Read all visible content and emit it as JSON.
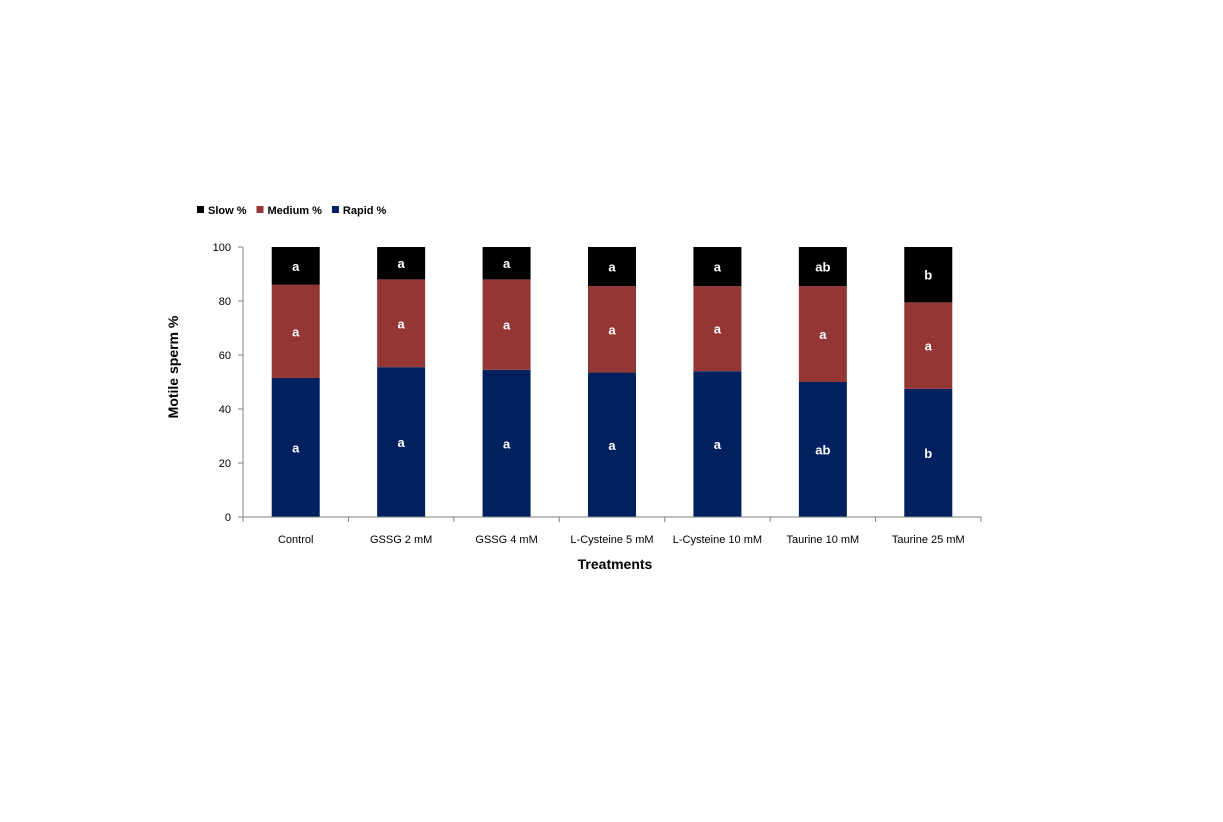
{
  "chart_data": {
    "type": "bar",
    "stacked": true,
    "title": "",
    "xlabel": "Treatments",
    "ylabel": "Motile sperm %",
    "ylim": [
      0,
      100
    ],
    "yticks": [
      0,
      20,
      40,
      60,
      80,
      100
    ],
    "grid": false,
    "legend_position": "top-left",
    "categories": [
      "Control",
      "GSSG 2 mM",
      "GSSG 4 mM",
      "L-Cysteine 5 mM",
      "L-Cysteine 10 mM",
      "Taurine 10 mM",
      "Taurine 25 mM"
    ],
    "series": [
      {
        "name": "Rapid %",
        "color": "#002060",
        "values": [
          51.5,
          55.5,
          54.5,
          53.5,
          54.0,
          50.0,
          47.5
        ],
        "letters": [
          "a",
          "a",
          "a",
          "a",
          "a",
          "ab",
          "b"
        ]
      },
      {
        "name": "Medium %",
        "color": "#943634",
        "values": [
          34.5,
          32.5,
          33.5,
          32.0,
          31.5,
          35.5,
          32.0
        ],
        "letters": [
          "a",
          "a",
          "a",
          "a",
          "a",
          "a",
          "a"
        ]
      },
      {
        "name": "Slow %",
        "color": "#000000",
        "values": [
          14.0,
          12.0,
          12.0,
          14.5,
          14.5,
          14.5,
          20.5
        ],
        "letters": [
          "a",
          "a",
          "a",
          "a",
          "a",
          "ab",
          "b"
        ]
      }
    ],
    "legend_order": [
      "Slow %",
      "Medium %",
      "Rapid %"
    ]
  }
}
